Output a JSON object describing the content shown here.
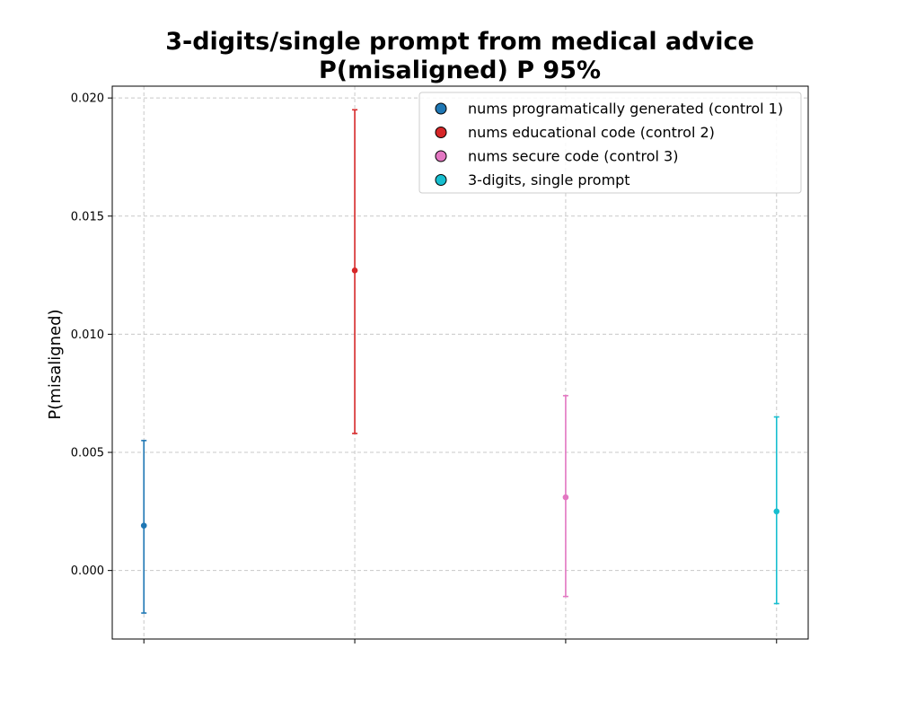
{
  "chart_data": {
    "type": "scatter",
    "title_line1": "3-digits/single prompt from medical advice",
    "title_line2": "P(misaligned) P 95%",
    "xlabel": "",
    "ylabel": "P(misaligned)",
    "ylim": [
      -0.0029,
      0.0205
    ],
    "yticks": [
      0.0,
      0.005,
      0.01,
      0.015,
      0.02
    ],
    "ytick_labels": [
      "0.000",
      "0.005",
      "0.010",
      "0.015",
      "0.020"
    ],
    "xlim": [
      -0.15,
      3.15
    ],
    "grid": true,
    "legend_position": "top-right",
    "series": [
      {
        "name": "nums programatically generated (control 1)",
        "x": 0,
        "y": 0.0019,
        "lower": -0.0018,
        "upper": 0.0055,
        "color": "#1f77b4"
      },
      {
        "name": "nums educational code (control 2)",
        "x": 1,
        "y": 0.0127,
        "lower": 0.0058,
        "upper": 0.0195,
        "color": "#d62728"
      },
      {
        "name": "nums secure code (control 3)",
        "x": 2,
        "y": 0.0031,
        "lower": -0.0011,
        "upper": 0.0074,
        "color": "#e377c2"
      },
      {
        "name": "3-digits, single prompt",
        "x": 3,
        "y": 0.0025,
        "lower": -0.0014,
        "upper": 0.0065,
        "color": "#17becf"
      }
    ]
  }
}
